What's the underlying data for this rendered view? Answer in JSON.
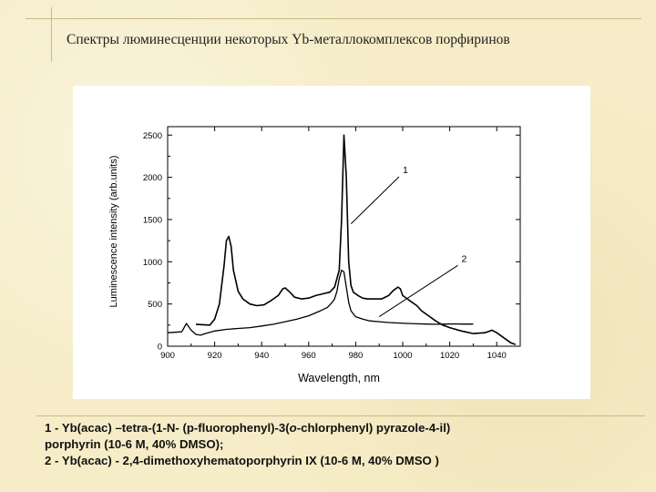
{
  "slide": {
    "title": "Спектры люминесценции некоторых Yb-металлокомплексов порфиринов",
    "caption": {
      "line1_prefix": "1 - Yb(acac) –tetra-(1-N- (p-fluorophenyl)-3(",
      "line1_italic": "o",
      "line1_suffix": "-chlorphenyl) pyrazole-4-il)",
      "line2": "porphyrin  (10-6 M,  40% DMSO);",
      "line3": "2 - Yb(acac) - 2,4-dimethoxyhematoporphyrin IX (10-6 M,  40% DMSO )"
    }
  },
  "chart_data": {
    "type": "line",
    "xlabel": "Wavelength, nm",
    "ylabel": "Luminescence intensity (arb.units)",
    "xlim": [
      900,
      1050
    ],
    "ylim": [
      0,
      2600
    ],
    "xticks": [
      900,
      920,
      940,
      960,
      980,
      1000,
      1020,
      1040
    ],
    "yticks": [
      0,
      500,
      1000,
      1500,
      2000,
      2500
    ],
    "grid": false,
    "legend": "none",
    "annotations": [
      {
        "text": "1",
        "series": 0,
        "point": [
          978,
          1450
        ],
        "label_at": [
          1000,
          2050
        ]
      },
      {
        "text": "2",
        "series": 1,
        "point": [
          990,
          350
        ],
        "label_at": [
          1025,
          1000
        ]
      }
    ],
    "series": [
      {
        "label": "1",
        "color": "#000000",
        "x": [
          912,
          915,
          918,
          920,
          922,
          924,
          925,
          926,
          927,
          928,
          930,
          932,
          935,
          938,
          941,
          944,
          947,
          949,
          950,
          952,
          954,
          957,
          960,
          963,
          966,
          969,
          971,
          973,
          974,
          975,
          976,
          977,
          978,
          979,
          981,
          983,
          985,
          988,
          991,
          994,
          996,
          998,
          999,
          1000,
          1002,
          1004,
          1006,
          1008,
          1011,
          1014,
          1017,
          1020,
          1025,
          1030,
          1035,
          1038,
          1040,
          1043,
          1046,
          1048
        ],
        "y": [
          260,
          255,
          250,
          320,
          500,
          950,
          1250,
          1300,
          1180,
          900,
          650,
          560,
          500,
          480,
          490,
          540,
          600,
          680,
          690,
          640,
          580,
          560,
          570,
          600,
          620,
          640,
          700,
          900,
          1500,
          2500,
          2000,
          1000,
          720,
          640,
          600,
          570,
          560,
          560,
          560,
          600,
          660,
          700,
          680,
          600,
          560,
          520,
          480,
          420,
          360,
          300,
          250,
          220,
          180,
          150,
          160,
          190,
          160,
          100,
          40,
          20
        ]
      },
      {
        "label": "2",
        "color": "#000000",
        "x": [
          900,
          903,
          906,
          908,
          910,
          912,
          914,
          916,
          920,
          925,
          930,
          935,
          940,
          945,
          950,
          955,
          960,
          965,
          968,
          970,
          971,
          972,
          973,
          974,
          975,
          976,
          977,
          978,
          980,
          983,
          986,
          990,
          994,
          998,
          1002,
          1006,
          1010,
          1014,
          1018,
          1022,
          1026,
          1030
        ],
        "y": [
          160,
          165,
          170,
          270,
          190,
          140,
          130,
          150,
          180,
          200,
          210,
          220,
          240,
          260,
          290,
          320,
          360,
          420,
          460,
          520,
          560,
          650,
          800,
          900,
          880,
          700,
          520,
          420,
          350,
          320,
          300,
          290,
          280,
          275,
          270,
          265,
          262,
          260,
          262,
          264,
          262,
          262
        ]
      }
    ]
  }
}
